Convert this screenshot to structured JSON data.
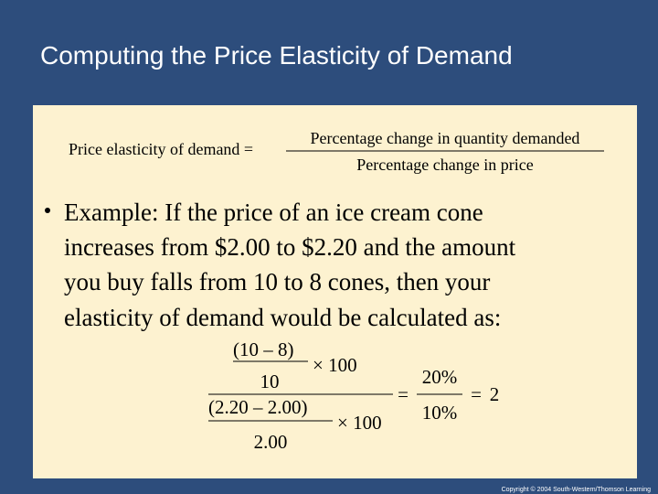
{
  "title": "Computing the Price Elasticity of Demand",
  "formula": {
    "lhs": "Price elasticity of demand =",
    "numerator": "Percentage change in quantity demanded",
    "denominator": "Percentage change in price"
  },
  "bullet": {
    "lines": [
      "Example: If the price of an ice cream cone",
      "increases from $2.00 to $2.20 and the amount",
      "you buy falls from 10 to 8 cones, then your",
      "elasticity of demand would be calculated as:"
    ]
  },
  "calculation": {
    "quantity_change": "(10 – 8)",
    "quantity_times": "× 100",
    "quantity_base": "10",
    "price_change": "(2.20 – 2.00)",
    "price_times": "× 100",
    "price_base": "2.00",
    "equals_1": "=",
    "percent_numerator": "20%",
    "percent_denominator": "10%",
    "equals_2": "=",
    "result": "2"
  },
  "footer": "Copyright © 2004  South-Western/Thomson Learning"
}
